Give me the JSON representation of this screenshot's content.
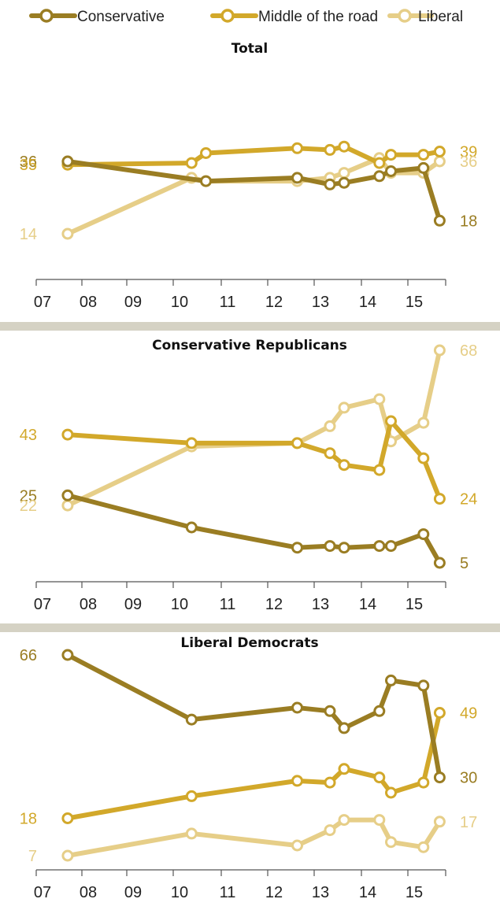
{
  "legend": [
    {
      "name": "Conservative",
      "color": "#9a7d23"
    },
    {
      "name": "Middle of the road",
      "color": "#d2a82a"
    },
    {
      "name": "Liberal",
      "color": "#e6ce88"
    }
  ],
  "separator_color": "#d5d2c4",
  "x_tick_labels": [
    "07",
    "08",
    "09",
    "10",
    "11",
    "12",
    "13",
    "14",
    "15"
  ],
  "chart_data": [
    {
      "type": "line",
      "title": "Total",
      "x": [
        2007.55,
        2010.25,
        2010.55,
        2012.5,
        2013.2,
        2013.5,
        2014.25,
        2014.5,
        2015.2,
        2015.55
      ],
      "series": [
        {
          "name": "Conservative",
          "values": [
            36,
            null,
            30,
            31,
            29,
            29.5,
            31.5,
            33,
            34,
            18
          ]
        },
        {
          "name": "Middle of the road",
          "values": [
            35,
            35.5,
            38.5,
            40,
            39.5,
            40.5,
            35.5,
            38,
            38,
            39
          ]
        },
        {
          "name": "Liberal",
          "values": [
            14,
            31,
            30,
            30,
            31,
            32.5,
            37,
            32.5,
            32.5,
            36
          ]
        }
      ],
      "end_labels": {
        "Conservative": "18",
        "Middle of the road": "39",
        "Liberal": "36"
      },
      "start_labels": {
        "Conservative": "36",
        "Middle of the road": "35",
        "Liberal": "14"
      }
    },
    {
      "type": "line",
      "title": "Conservative Republicans",
      "x": [
        2007.55,
        2010.25,
        2012.5,
        2013.2,
        2013.5,
        2014.25,
        2014.5,
        2015.2,
        2015.55
      ],
      "series": [
        {
          "name": "Conservative",
          "values": [
            25,
            15.5,
            9.5,
            10,
            9.5,
            10,
            10,
            13.5,
            5
          ]
        },
        {
          "name": "Middle of the road",
          "values": [
            43,
            40.5,
            40.5,
            37.5,
            34,
            32.5,
            47,
            36,
            24
          ]
        },
        {
          "name": "Liberal",
          "values": [
            22,
            39.5,
            40.5,
            45.5,
            51,
            53.5,
            41,
            46.5,
            68
          ]
        }
      ],
      "end_labels": {
        "Conservative": "5",
        "Middle of the road": "24",
        "Liberal": "68"
      },
      "start_labels": {
        "Conservative": "25",
        "Middle of the road": "43",
        "Liberal": "22"
      }
    },
    {
      "type": "line",
      "title": "Liberal Democrats",
      "x": [
        2007.55,
        2010.25,
        2012.5,
        2013.2,
        2013.5,
        2014.25,
        2014.5,
        2015.2,
        2015.55
      ],
      "series": [
        {
          "name": "Conservative",
          "values": [
            66,
            47,
            50.5,
            49.5,
            44.5,
            49.5,
            58.5,
            57,
            30
          ]
        },
        {
          "name": "Middle of the road",
          "values": [
            18,
            24.5,
            29,
            28.5,
            32.5,
            30,
            25.5,
            28.5,
            49
          ]
        },
        {
          "name": "Liberal",
          "values": [
            7,
            13.5,
            10,
            14.5,
            17.5,
            17.5,
            11,
            9.5,
            17
          ]
        }
      ],
      "end_labels": {
        "Conservative": "30",
        "Middle of the road": "49",
        "Liberal": "17"
      },
      "start_labels": {
        "Conservative": "66",
        "Middle of the road": "18",
        "Liberal": "7"
      }
    }
  ]
}
